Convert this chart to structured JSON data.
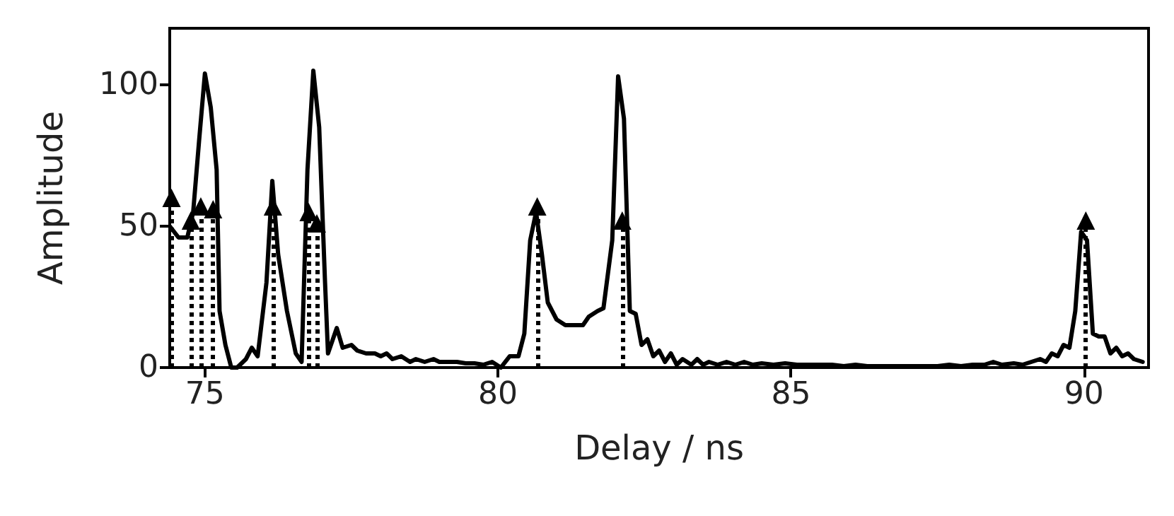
{
  "chart_data": {
    "type": "line",
    "xlabel": "Delay / ns",
    "ylabel": "Amplitude",
    "xlim": [
      74.4,
      91.1
    ],
    "ylim": [
      0,
      120
    ],
    "xticks": [
      75,
      80,
      85,
      90
    ],
    "yticks": [
      0,
      50,
      100
    ],
    "grid": false,
    "series": [
      {
        "color": "#000000",
        "marker": "none",
        "line_style": "solid",
        "x": [
          74.4,
          74.55,
          74.7,
          74.8,
          74.9,
          75.0,
          75.1,
          75.2,
          75.25,
          75.35,
          75.45,
          75.55,
          75.7,
          75.8,
          75.9,
          76.05,
          76.15,
          76.25,
          76.4,
          76.55,
          76.65,
          76.75,
          76.85,
          76.95,
          77.05,
          77.1,
          77.25,
          77.35,
          77.5,
          77.6,
          77.75,
          77.9,
          78.0,
          78.1,
          78.2,
          78.35,
          78.5,
          78.6,
          78.75,
          78.9,
          79.0,
          79.15,
          79.3,
          79.45,
          79.6,
          79.75,
          79.9,
          80.05,
          80.2,
          80.35,
          80.45,
          80.55,
          80.65,
          80.75,
          80.85,
          81.0,
          81.15,
          81.3,
          81.45,
          81.55,
          81.7,
          81.8,
          81.95,
          82.05,
          82.15,
          82.25,
          82.35,
          82.45,
          82.55,
          82.65,
          82.75,
          82.85,
          82.95,
          83.05,
          83.15,
          83.3,
          83.4,
          83.5,
          83.6,
          83.75,
          83.9,
          84.05,
          84.2,
          84.35,
          84.5,
          84.7,
          84.9,
          85.1,
          85.3,
          85.5,
          85.7,
          85.9,
          86.1,
          86.3,
          86.5,
          86.7,
          86.9,
          87.1,
          87.3,
          87.5,
          87.7,
          87.9,
          88.1,
          88.3,
          88.45,
          88.6,
          88.8,
          88.95,
          89.1,
          89.25,
          89.35,
          89.45,
          89.55,
          89.65,
          89.75,
          89.85,
          89.95,
          90.05,
          90.15,
          90.25,
          90.35,
          90.45,
          90.55,
          90.65,
          90.75,
          90.85,
          91.0
        ],
        "values": [
          50,
          46,
          46,
          55,
          80,
          104,
          92,
          70,
          20,
          8,
          0,
          0,
          3,
          7,
          4,
          30,
          66,
          40,
          20,
          5,
          2,
          70,
          105,
          85,
          30,
          5,
          14,
          7,
          8,
          6,
          5,
          5,
          4,
          5,
          3,
          4,
          2,
          3,
          2,
          3,
          2,
          2,
          2,
          1.5,
          1.5,
          1,
          2,
          0,
          4,
          4,
          12,
          45,
          55,
          40,
          23,
          17,
          15,
          15,
          15,
          18,
          20,
          21,
          45,
          103,
          88,
          20,
          19,
          8,
          10,
          4,
          6,
          2,
          5,
          1,
          3,
          1,
          3,
          1,
          2,
          1,
          2,
          1,
          2,
          1,
          1.5,
          1,
          1.5,
          1,
          1,
          1,
          1,
          0.5,
          1,
          0.5,
          0.5,
          0.5,
          0.5,
          0.5,
          0.5,
          0.5,
          1,
          0.5,
          1,
          1,
          2,
          1,
          1.5,
          1,
          2,
          3,
          2,
          5,
          4,
          8,
          7,
          20,
          48,
          45,
          12,
          11,
          11,
          5,
          7,
          4,
          5,
          3,
          2
        ]
      },
      {
        "type": "lollipop",
        "color": "#000000",
        "marker": "triangle",
        "line_style": "dotted",
        "x": [
          74.43,
          74.76,
          74.93,
          75.14,
          76.16,
          76.77,
          76.91,
          80.67,
          82.12,
          90.03
        ],
        "values": [
          60,
          52,
          57,
          56,
          57,
          55,
          51,
          57,
          52,
          52
        ]
      }
    ]
  }
}
